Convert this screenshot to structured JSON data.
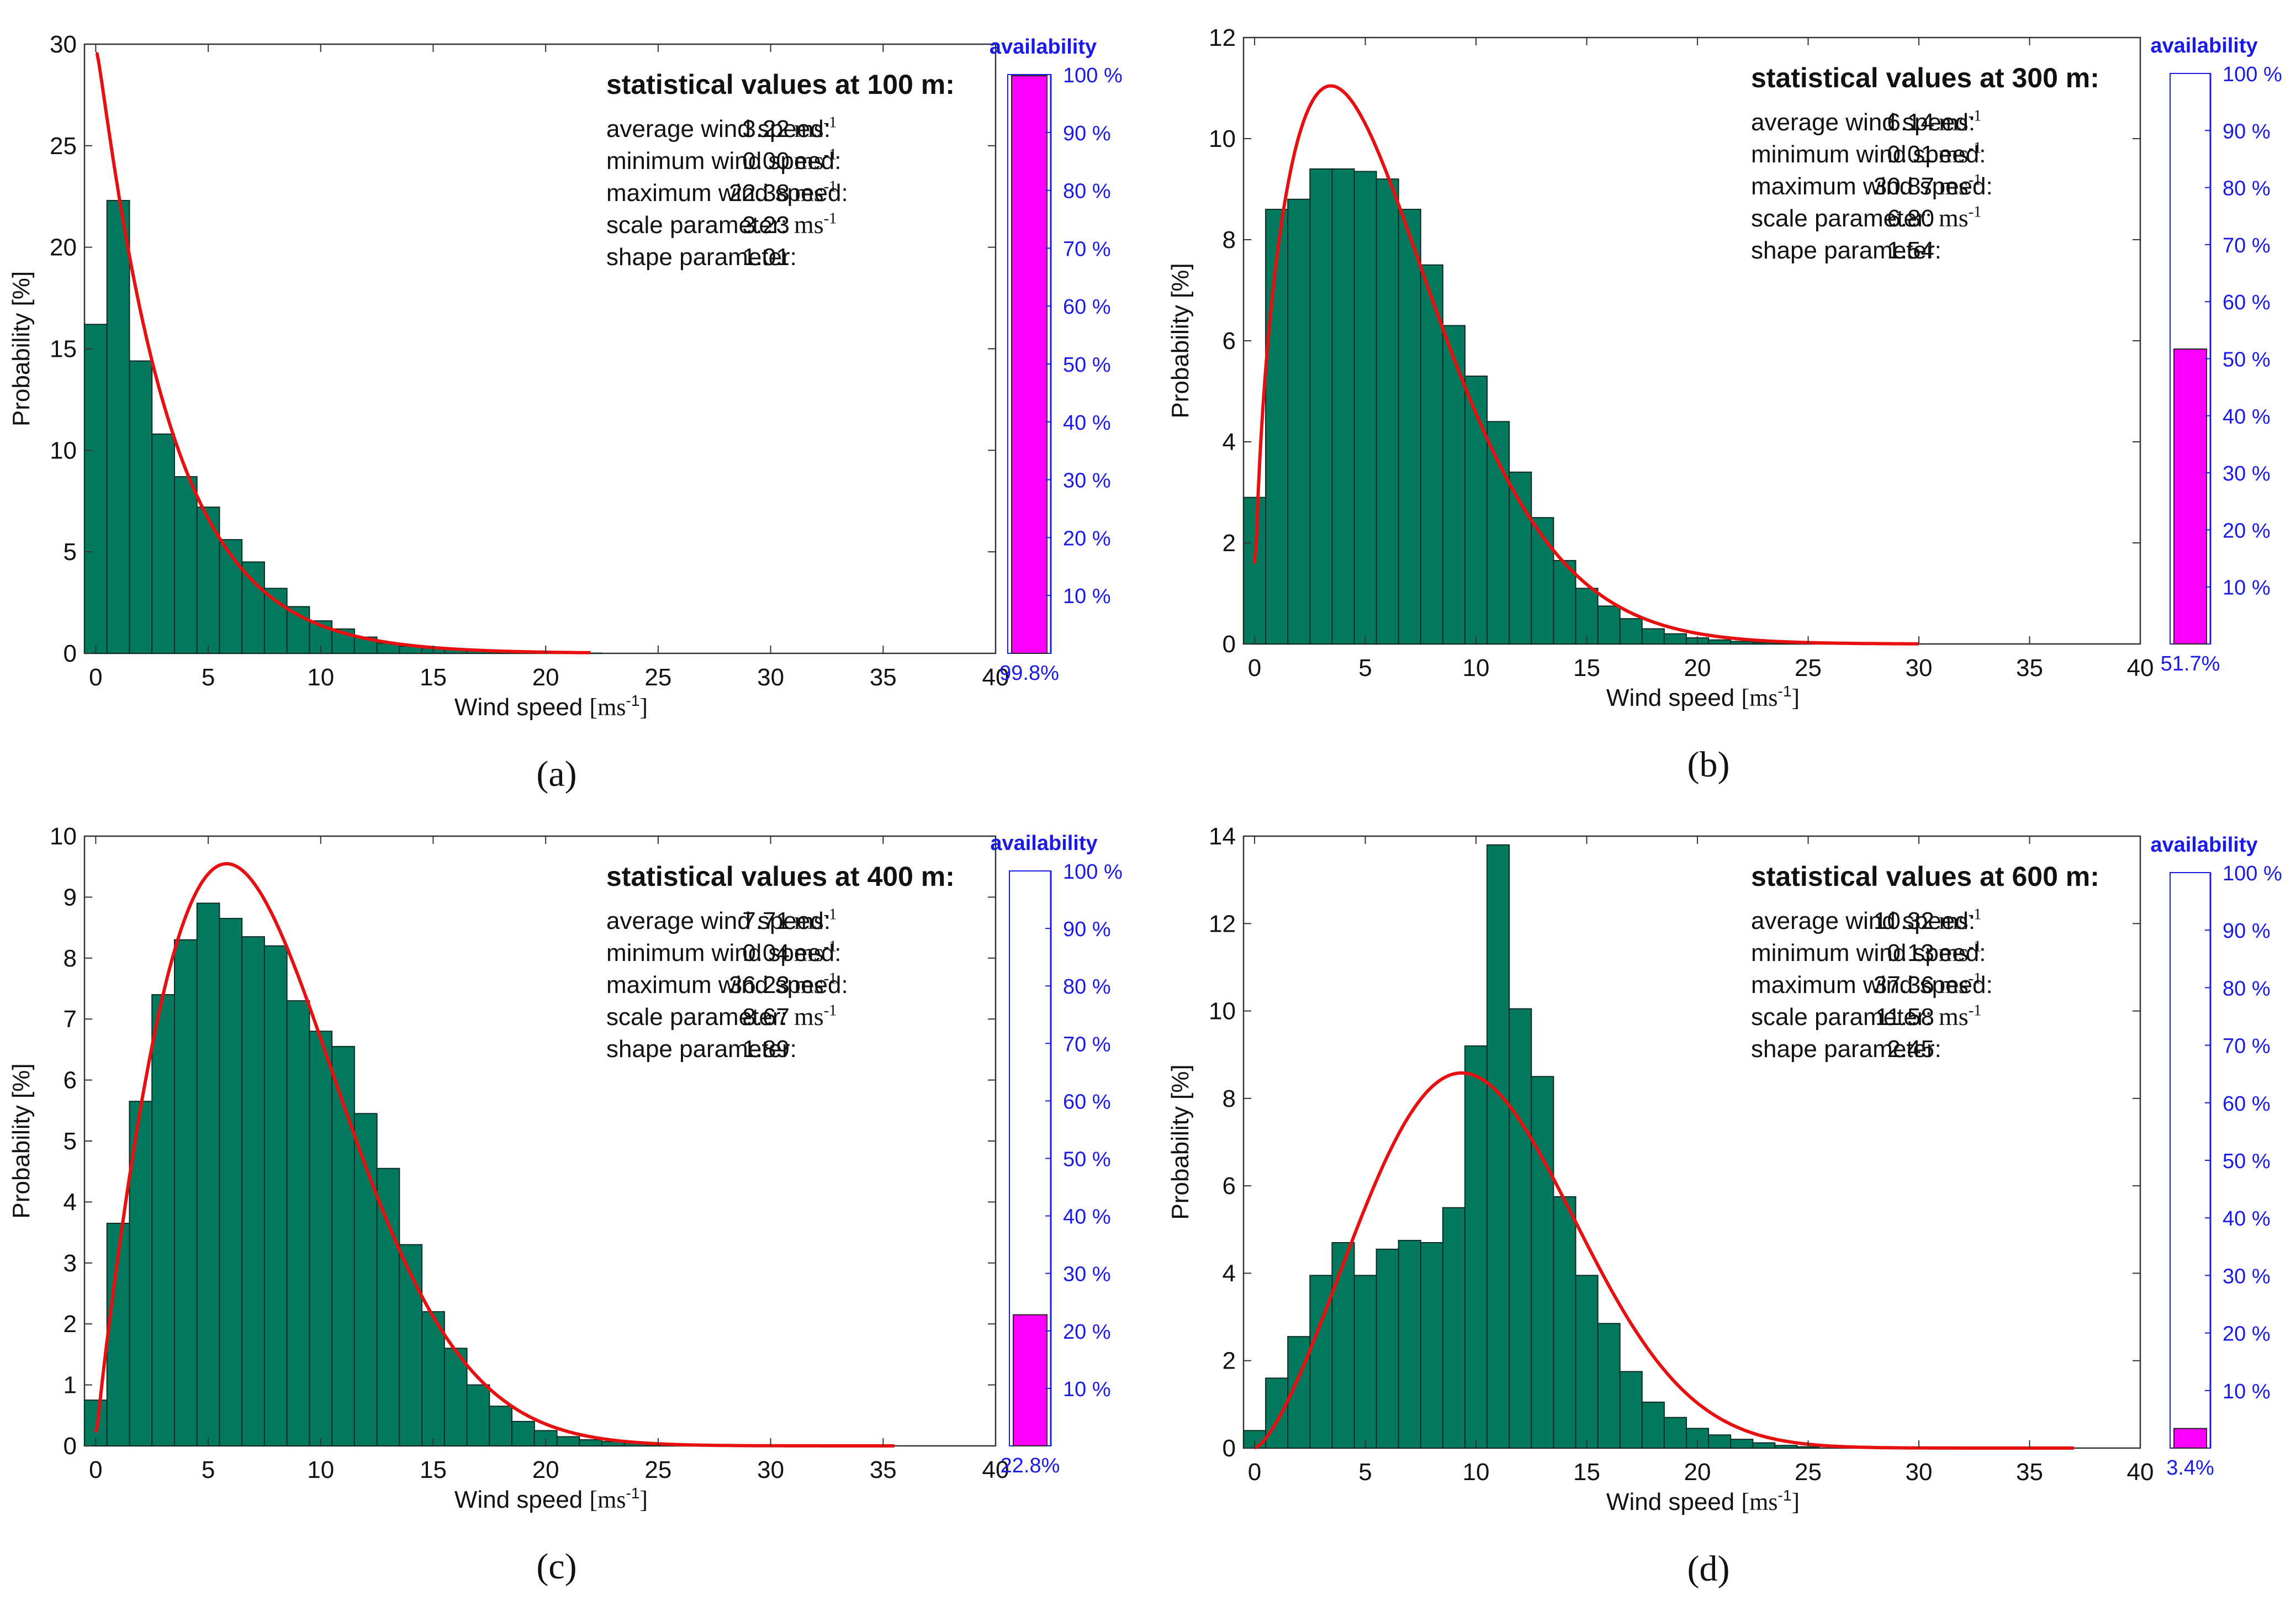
{
  "chart_data": [
    {
      "type": "bar",
      "panel_label": "(a)",
      "title": "statistical values at 100 m:",
      "stats": [
        {
          "label": "average wind speed:",
          "value": "3.22",
          "unit": "ms",
          "exp": "-1"
        },
        {
          "label": "minimum wind speed:",
          "value": "0.00",
          "unit": "ms",
          "exp": "-1"
        },
        {
          "label": "maximum wind speed:",
          "value": "22.38",
          "unit": "ms",
          "exp": "-1"
        },
        {
          "label": "scale parameter:",
          "value": "3.23",
          "unit": "ms",
          "exp": "-1"
        },
        {
          "label": "shape parameter:",
          "value": "1.01",
          "unit": "",
          "exp": ""
        }
      ],
      "xlabel": "Wind speed",
      "xunit": "ms",
      "xunit_exp": "-1",
      "ylabel": "Probability [%]",
      "xlim": [
        -0.5,
        40
      ],
      "ylim": [
        0,
        30
      ],
      "xticks": [
        0,
        5,
        10,
        15,
        20,
        25,
        30,
        35,
        40
      ],
      "yticks": [
        0,
        5,
        10,
        15,
        20,
        25,
        30
      ],
      "bin_width": 1,
      "bin_starts": [
        -0.5,
        0.5,
        1.5,
        2.5,
        3.5,
        4.5,
        5.5,
        6.5,
        7.5,
        8.5,
        9.5,
        10.5,
        11.5,
        12.5,
        13.5,
        14.5,
        15.5,
        16.5,
        17.5,
        18.5,
        19.5,
        20.5,
        21.5
      ],
      "values": [
        16.2,
        22.3,
        14.4,
        10.8,
        8.7,
        7.2,
        5.6,
        4.5,
        3.2,
        2.3,
        1.6,
        1.2,
        0.8,
        0.5,
        0.35,
        0.25,
        0.18,
        0.12,
        0.08,
        0.05,
        0.03,
        0.02,
        0.01
      ],
      "weibull": {
        "scale": 3.23,
        "shape": 1.01,
        "x_max": 22
      },
      "availability": {
        "label": "availability",
        "value": 99.8,
        "value_text": "99.8%",
        "ticks": [
          "10 %",
          "20 %",
          "30 %",
          "40 %",
          "50 %",
          "60 %",
          "70 %",
          "80 %",
          "90 %",
          "100 %"
        ]
      },
      "colors": {
        "bar": "#037a60",
        "bar_edge": "#0c2a22",
        "fit": "#e61010",
        "avail": "#ff00ff",
        "avail_axis": "#1a1ae6"
      }
    },
    {
      "type": "bar",
      "panel_label": "(b)",
      "title": "statistical values at 300 m:",
      "stats": [
        {
          "label": "average wind speed:",
          "value": "6.14",
          "unit": "ms",
          "exp": "-1"
        },
        {
          "label": "minimum wind speed:",
          "value": "0.01",
          "unit": "ms",
          "exp": "-1"
        },
        {
          "label": "maximum wind speed:",
          "value": "30.87",
          "unit": "ms",
          "exp": "-1"
        },
        {
          "label": "scale parameter:",
          "value": "6.80",
          "unit": "ms",
          "exp": "-1"
        },
        {
          "label": "shape parameter:",
          "value": "1.54",
          "unit": "",
          "exp": ""
        }
      ],
      "xlabel": "Wind speed",
      "xunit": "ms",
      "xunit_exp": "-1",
      "ylabel": "Probability [%]",
      "xlim": [
        -0.5,
        40
      ],
      "ylim": [
        0,
        12
      ],
      "xticks": [
        0,
        5,
        10,
        15,
        20,
        25,
        30,
        35,
        40
      ],
      "yticks": [
        0,
        2,
        4,
        6,
        8,
        10,
        12
      ],
      "bin_width": 1,
      "bin_starts": [
        -0.5,
        0.5,
        1.5,
        2.5,
        3.5,
        4.5,
        5.5,
        6.5,
        7.5,
        8.5,
        9.5,
        10.5,
        11.5,
        12.5,
        13.5,
        14.5,
        15.5,
        16.5,
        17.5,
        18.5,
        19.5,
        20.5,
        21.5,
        22.5,
        23.5,
        24.5
      ],
      "values": [
        2.9,
        8.6,
        8.8,
        9.4,
        9.4,
        9.35,
        9.2,
        8.6,
        7.5,
        6.3,
        5.3,
        4.4,
        3.4,
        2.5,
        1.65,
        1.1,
        0.75,
        0.5,
        0.3,
        0.2,
        0.12,
        0.08,
        0.05,
        0.03,
        0.02,
        0.01
      ],
      "weibull": {
        "scale": 6.8,
        "shape": 1.54,
        "x_max": 30
      },
      "availability": {
        "label": "availability",
        "value": 51.7,
        "value_text": "51.7%",
        "ticks": [
          "10 %",
          "20 %",
          "30 %",
          "40 %",
          "50 %",
          "60 %",
          "70 %",
          "80 %",
          "90 %",
          "100 %"
        ]
      },
      "colors": {
        "bar": "#037a60",
        "bar_edge": "#0c2a22",
        "fit": "#e61010",
        "avail": "#ff00ff",
        "avail_axis": "#1a1ae6"
      }
    },
    {
      "type": "bar",
      "panel_label": "(c)",
      "title": "statistical values at 400 m:",
      "stats": [
        {
          "label": "average wind speed:",
          "value": "7.71",
          "unit": "ms",
          "exp": "-1"
        },
        {
          "label": "minimum wind speed:",
          "value": "0.04",
          "unit": "ms",
          "exp": "-1"
        },
        {
          "label": "maximum wind speed:",
          "value": "36.23",
          "unit": "ms",
          "exp": "-1"
        },
        {
          "label": "scale parameter:",
          "value": "8.67",
          "unit": "ms",
          "exp": "-1"
        },
        {
          "label": "shape parameter:",
          "value": "1.89",
          "unit": "",
          "exp": ""
        }
      ],
      "xlabel": "Wind speed",
      "xunit": "ms",
      "xunit_exp": "-1",
      "ylabel": "Probability [%]",
      "xlim": [
        -0.5,
        40
      ],
      "ylim": [
        0,
        10
      ],
      "xticks": [
        0,
        5,
        10,
        15,
        20,
        25,
        30,
        35,
        40
      ],
      "yticks": [
        0,
        1,
        2,
        3,
        4,
        5,
        6,
        7,
        8,
        9,
        10
      ],
      "bin_width": 1,
      "bin_starts": [
        -0.5,
        0.5,
        1.5,
        2.5,
        3.5,
        4.5,
        5.5,
        6.5,
        7.5,
        8.5,
        9.5,
        10.5,
        11.5,
        12.5,
        13.5,
        14.5,
        15.5,
        16.5,
        17.5,
        18.5,
        19.5,
        20.5,
        21.5,
        22.5,
        23.5,
        24.5,
        25.5,
        26.5
      ],
      "values": [
        0.75,
        3.65,
        5.65,
        7.4,
        8.3,
        8.9,
        8.65,
        8.35,
        8.2,
        7.3,
        6.8,
        6.55,
        5.45,
        4.55,
        3.3,
        2.2,
        1.6,
        1.0,
        0.65,
        0.4,
        0.25,
        0.15,
        0.1,
        0.07,
        0.05,
        0.03,
        0.02,
        0.01
      ],
      "weibull": {
        "scale": 8.67,
        "shape": 1.89,
        "x_max": 35.5
      },
      "availability": {
        "label": "availability",
        "value": 22.8,
        "value_text": "22.8%",
        "ticks": [
          "10 %",
          "20 %",
          "30 %",
          "40 %",
          "50 %",
          "60 %",
          "70 %",
          "80 %",
          "90 %",
          "100 %"
        ]
      },
      "colors": {
        "bar": "#037a60",
        "bar_edge": "#0c2a22",
        "fit": "#e61010",
        "avail": "#ff00ff",
        "avail_axis": "#1a1ae6"
      }
    },
    {
      "type": "bar",
      "panel_label": "(d)",
      "title": "statistical values at 600 m:",
      "stats": [
        {
          "label": "average wind speed:",
          "value": "10.32",
          "unit": "ms",
          "exp": "-1"
        },
        {
          "label": "minimum wind speed:",
          "value": "0.13",
          "unit": "ms",
          "exp": "-1"
        },
        {
          "label": "maximum wind speed:",
          "value": "37.36",
          "unit": "ms",
          "exp": "-1"
        },
        {
          "label": "scale parameter:",
          "value": "11.58",
          "unit": "ms",
          "exp": "-1"
        },
        {
          "label": "shape parameter:",
          "value": "2.45",
          "unit": "",
          "exp": ""
        }
      ],
      "xlabel": "Wind speed",
      "xunit": "ms",
      "xunit_exp": "-1",
      "ylabel": "Probability [%]",
      "xlim": [
        -0.5,
        40
      ],
      "ylim": [
        0,
        14
      ],
      "xticks": [
        0,
        5,
        10,
        15,
        20,
        25,
        30,
        35,
        40
      ],
      "yticks": [
        0,
        2,
        4,
        6,
        8,
        10,
        12,
        14
      ],
      "bin_width": 1,
      "bin_starts": [
        -0.5,
        0.5,
        1.5,
        2.5,
        3.5,
        4.5,
        5.5,
        6.5,
        7.5,
        8.5,
        9.5,
        10.5,
        11.5,
        12.5,
        13.5,
        14.5,
        15.5,
        16.5,
        17.5,
        18.5,
        19.5,
        20.5,
        21.5,
        22.5,
        23.5,
        24.5
      ],
      "values": [
        0.4,
        1.6,
        2.55,
        3.95,
        4.7,
        3.95,
        4.55,
        4.75,
        4.7,
        5.5,
        9.2,
        13.8,
        10.05,
        8.5,
        5.75,
        3.95,
        2.85,
        1.75,
        1.05,
        0.7,
        0.45,
        0.3,
        0.2,
        0.12,
        0.06,
        0.03
      ],
      "weibull": {
        "scale": 11.58,
        "shape": 2.45,
        "x_max": 37
      },
      "availability": {
        "label": "availability",
        "value": 3.4,
        "value_text": "3.4%",
        "ticks": [
          "10 %",
          "20 %",
          "30 %",
          "40 %",
          "50 %",
          "60 %",
          "70 %",
          "80 %",
          "90 %",
          "100 %"
        ]
      },
      "colors": {
        "bar": "#037a60",
        "bar_edge": "#0c2a22",
        "fit": "#e61010",
        "avail": "#ff00ff",
        "avail_axis": "#1a1ae6"
      }
    }
  ]
}
